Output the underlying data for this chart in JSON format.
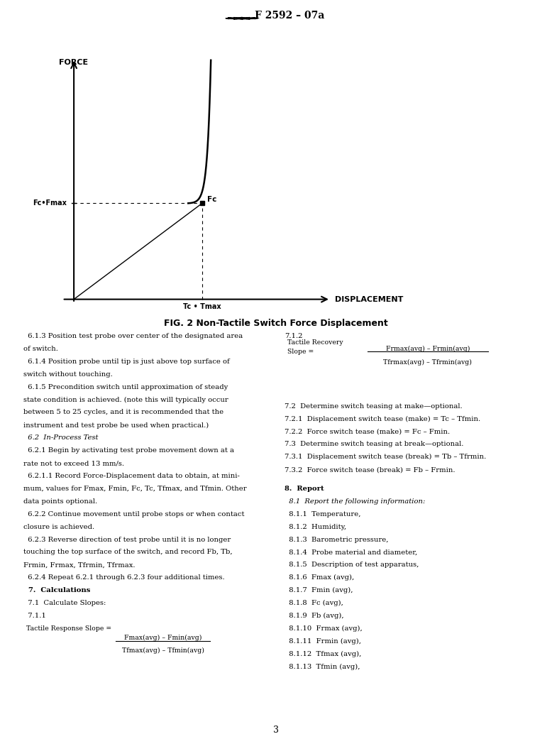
{
  "title": "F 2592 – 07a",
  "fig_caption": "FIG. 2 Non-Tactile Switch Force Displacement",
  "page_number": "3",
  "bg_color": "#ffffff",
  "body_fontsize": 7.2,
  "left_col_lines": [
    [
      "  6.1.3 Position test probe over center of the designated area",
      "normal",
      "normal"
    ],
    [
      "of switch.",
      "normal",
      "normal"
    ],
    [
      "  6.1.4 Position probe until tip is just above top surface of",
      "normal",
      "normal"
    ],
    [
      "switch without touching.",
      "normal",
      "normal"
    ],
    [
      "  6.1.5 Precondition switch until approximation of steady",
      "normal",
      "normal"
    ],
    [
      "state condition is achieved. (note this will typically occur",
      "normal",
      "normal"
    ],
    [
      "between 5 to 25 cycles, and it is recommended that the",
      "normal",
      "normal"
    ],
    [
      "instrument and test probe be used when practical.)",
      "normal",
      "normal"
    ],
    [
      "  6.2  In-Process Test",
      "italic",
      "normal"
    ],
    [
      "  6.2.1 Begin by activating test probe movement down at a",
      "normal",
      "normal"
    ],
    [
      "rate not to exceed 13 mm/s.",
      "normal",
      "normal"
    ],
    [
      "  6.2.1.1 Record Force-Displacement data to obtain, at mini-",
      "normal",
      "normal"
    ],
    [
      "mum, values for Fmax, Fmin, Fc, Tc, Tfmax, and Tfmin. Other",
      "normal",
      "normal"
    ],
    [
      "data points optional.",
      "normal",
      "normal"
    ],
    [
      "  6.2.2 Continue movement until probe stops or when contact",
      "normal",
      "normal"
    ],
    [
      "closure is achieved.",
      "normal",
      "normal"
    ],
    [
      "  6.2.3 Reverse direction of test probe until it is no longer",
      "normal",
      "normal"
    ],
    [
      "touching the top surface of the switch, and record Fb, Tb,",
      "normal",
      "normal"
    ],
    [
      "Frmin, Frmax, Tfrmin, Tfrmax.",
      "normal",
      "normal"
    ],
    [
      "  6.2.4 Repeat 6.2.1 through 6.2.3 four additional times.",
      "normal",
      "normal"
    ],
    [
      "  7.  Calculations",
      "normal",
      "bold"
    ],
    [
      "  7.1  Calculate Slopes:",
      "normal",
      "normal"
    ],
    [
      "  7.1.1",
      "normal",
      "normal"
    ]
  ],
  "section72_lines": [
    "7.2  Determine switch teasing at make—optional.",
    "7.2.1  Displacement switch tease (make) = Tc – Tfmin.",
    "7.2.2  Force switch tease (make) = Fc – Fmin.",
    "7.3  Determine switch teasing at break—optional.",
    "7.3.1  Displacement switch tease (break) = Tb – Tfrmin.",
    "7.3.2  Force switch tease (break) = Fb – Frmin."
  ],
  "section8_header": "8.  Report",
  "section81_header": "  8.1  Report the following information:",
  "section81_items": [
    "  8.1.1  Temperature,",
    "  8.1.2  Humidity,",
    "  8.1.3  Barometric pressure,",
    "  8.1.4  Probe material and diameter,",
    "  8.1.5  Description of test apparatus,",
    "  8.1.6  Fmax (avg),",
    "  8.1.7  Fmin (avg),",
    "  8.1.8  Fc (avg),",
    "  8.1.9  Fb (avg),",
    "  8.1.10  Frmax (avg),",
    "  8.1.11  Frmin (avg),",
    "  8.1.12  Tfmax (avg),",
    "  8.1.13  Tfmin (avg),"
  ]
}
